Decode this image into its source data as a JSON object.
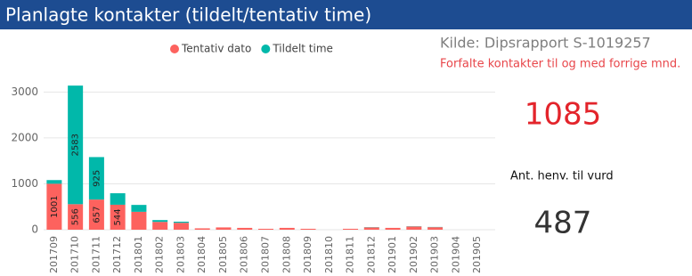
{
  "header": {
    "title": "Planlagte kontakter (tildelt/tentativ time)"
  },
  "chart_data": {
    "type": "stacked_bar",
    "categories": [
      "201709",
      "201710",
      "201711",
      "201712",
      "201801",
      "201802",
      "201803",
      "201804",
      "201805",
      "201806",
      "201807",
      "201808",
      "201809",
      "201810",
      "201811",
      "201812",
      "201901",
      "201902",
      "201903",
      "201904",
      "201905"
    ],
    "series": [
      {
        "name": "Tentativ dato",
        "color": "#fd625e",
        "values": [
          1001,
          556,
          657,
          544,
          390,
          170,
          150,
          30,
          50,
          40,
          20,
          40,
          20,
          0,
          20,
          50,
          40,
          70,
          55,
          0,
          0
        ]
      },
      {
        "name": "Tildelt time",
        "color": "#01b8aa",
        "values": [
          80,
          2583,
          925,
          250,
          150,
          40,
          25,
          0,
          0,
          0,
          0,
          0,
          0,
          0,
          0,
          5,
          0,
          5,
          5,
          0,
          0
        ]
      }
    ],
    "ylim": [
      0,
      3200
    ],
    "yticks": [
      0,
      1000,
      2000,
      3000
    ],
    "grid": true,
    "legend": "top"
  },
  "info": {
    "source": "Kilde: Dipsrapport S-1019257",
    "note": "Forfalte kontakter til og med forrige mnd."
  },
  "kpis": [
    {
      "value": "1085"
    },
    {
      "label": "Ant. henv. til vurd",
      "value": "487"
    }
  ]
}
